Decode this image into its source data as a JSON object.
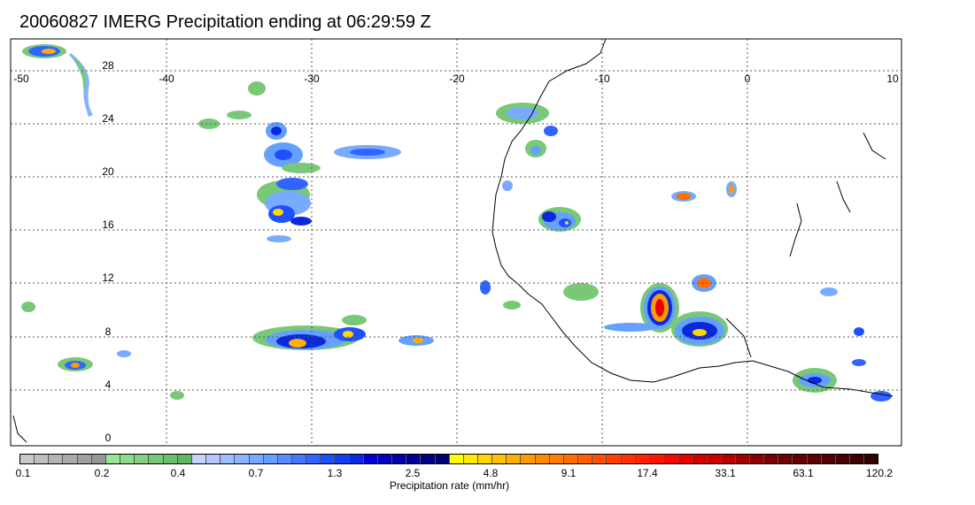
{
  "title": "20060827 IMERG Precipitation ending at 06:29:59 Z",
  "map": {
    "lon_ticks": [
      "-50",
      "-40",
      "-30",
      "-20",
      "-10",
      "0",
      "10"
    ],
    "lat_ticks": [
      "28",
      "24",
      "20",
      "16",
      "12",
      "8",
      "4",
      "0"
    ]
  },
  "colorbar": {
    "label": "Precipitation rate (mm/hr)",
    "tick_labels": [
      "0.1",
      "0.2",
      "0.4",
      "0.7",
      "1.3",
      "2.5",
      "4.8",
      "9.1",
      "17.4",
      "33.1",
      "63.1",
      "120.2"
    ],
    "colors": [
      "#c8c8c8",
      "#bebebe",
      "#b4b4b4",
      "#aaaaaa",
      "#a0a0a0",
      "#969696",
      "#96e696",
      "#8cdc8c",
      "#82d282",
      "#78c878",
      "#6ebe6e",
      "#64b464",
      "#c8d2ff",
      "#b4c8ff",
      "#a0beff",
      "#8cb4ff",
      "#78aaff",
      "#64a0ff",
      "#5a8cff",
      "#4678ff",
      "#3264ff",
      "#1e50ff",
      "#143cf0",
      "#0a28dc",
      "#0000d2",
      "#0000be",
      "#0000aa",
      "#000096",
      "#000082",
      "#00006e",
      "#ffff00",
      "#ffeb00",
      "#ffd700",
      "#ffc300",
      "#ffaf00",
      "#ff9b00",
      "#ff8c00",
      "#ff7d00",
      "#ff6e00",
      "#ff5f00",
      "#ff5000",
      "#ff4100",
      "#ff3200",
      "#ff2300",
      "#ff1400",
      "#f00a00",
      "#e60000",
      "#d20000",
      "#c80000",
      "#b40000",
      "#a00000",
      "#8c0000",
      "#780000",
      "#6e0000",
      "#640000",
      "#5a0000",
      "#500000",
      "#460000",
      "#3c0000",
      "#320000"
    ]
  }
}
